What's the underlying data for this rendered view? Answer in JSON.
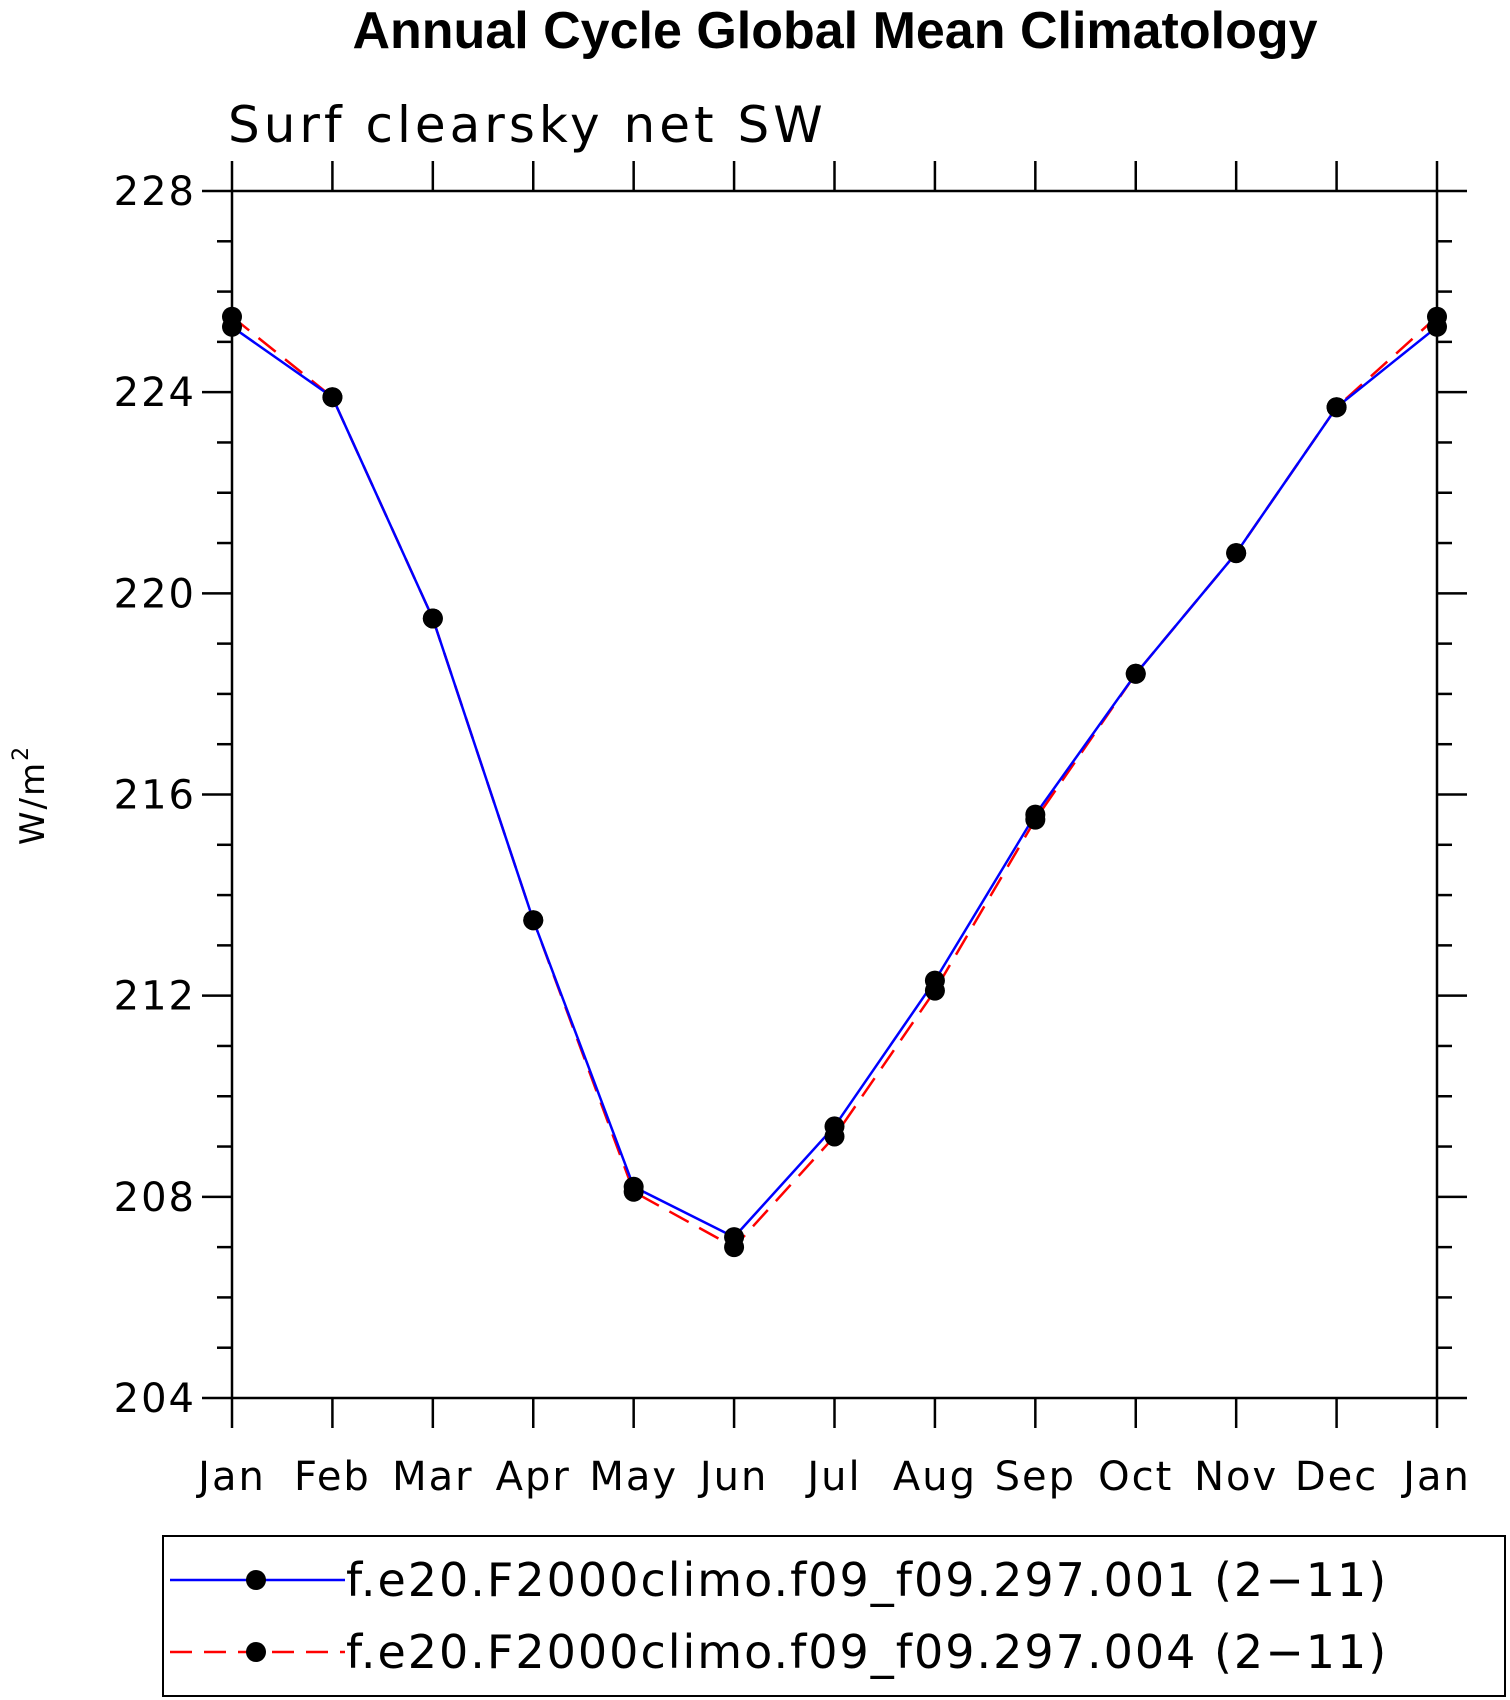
{
  "chart_data": {
    "type": "line",
    "title": "Annual Cycle Global Mean Climatology",
    "subtitle": "Surf clearsky net SW",
    "ylabel": "W/m",
    "ylabel_superscript": "2",
    "xlabel": "",
    "categories": [
      "Jan",
      "Feb",
      "Mar",
      "Apr",
      "May",
      "Jun",
      "Jul",
      "Aug",
      "Sep",
      "Oct",
      "Nov",
      "Dec",
      "Jan"
    ],
    "ylim": [
      204,
      228
    ],
    "yticks": [
      204,
      208,
      212,
      216,
      220,
      224,
      228
    ],
    "yminor_step": 1,
    "grid": false,
    "legend_position": "bottom",
    "series": [
      {
        "name": "f.e20.F2000climo.f09_f09.297.001 (2−11)",
        "color": "#0000ff",
        "dash": "solid",
        "marker": "filled-circle",
        "values": [
          225.3,
          223.9,
          219.5,
          213.5,
          208.2,
          207.2,
          209.4,
          212.3,
          215.6,
          218.4,
          220.8,
          223.7,
          225.3
        ]
      },
      {
        "name": "f.e20.F2000climo.f09_f09.297.004 (2−11)",
        "color": "#ff0000",
        "dash": "dashed",
        "marker": "filled-circle",
        "values": [
          225.5,
          223.9,
          219.5,
          213.5,
          208.1,
          207.0,
          209.2,
          212.1,
          215.5,
          218.4,
          220.8,
          223.7,
          225.5
        ]
      }
    ]
  }
}
